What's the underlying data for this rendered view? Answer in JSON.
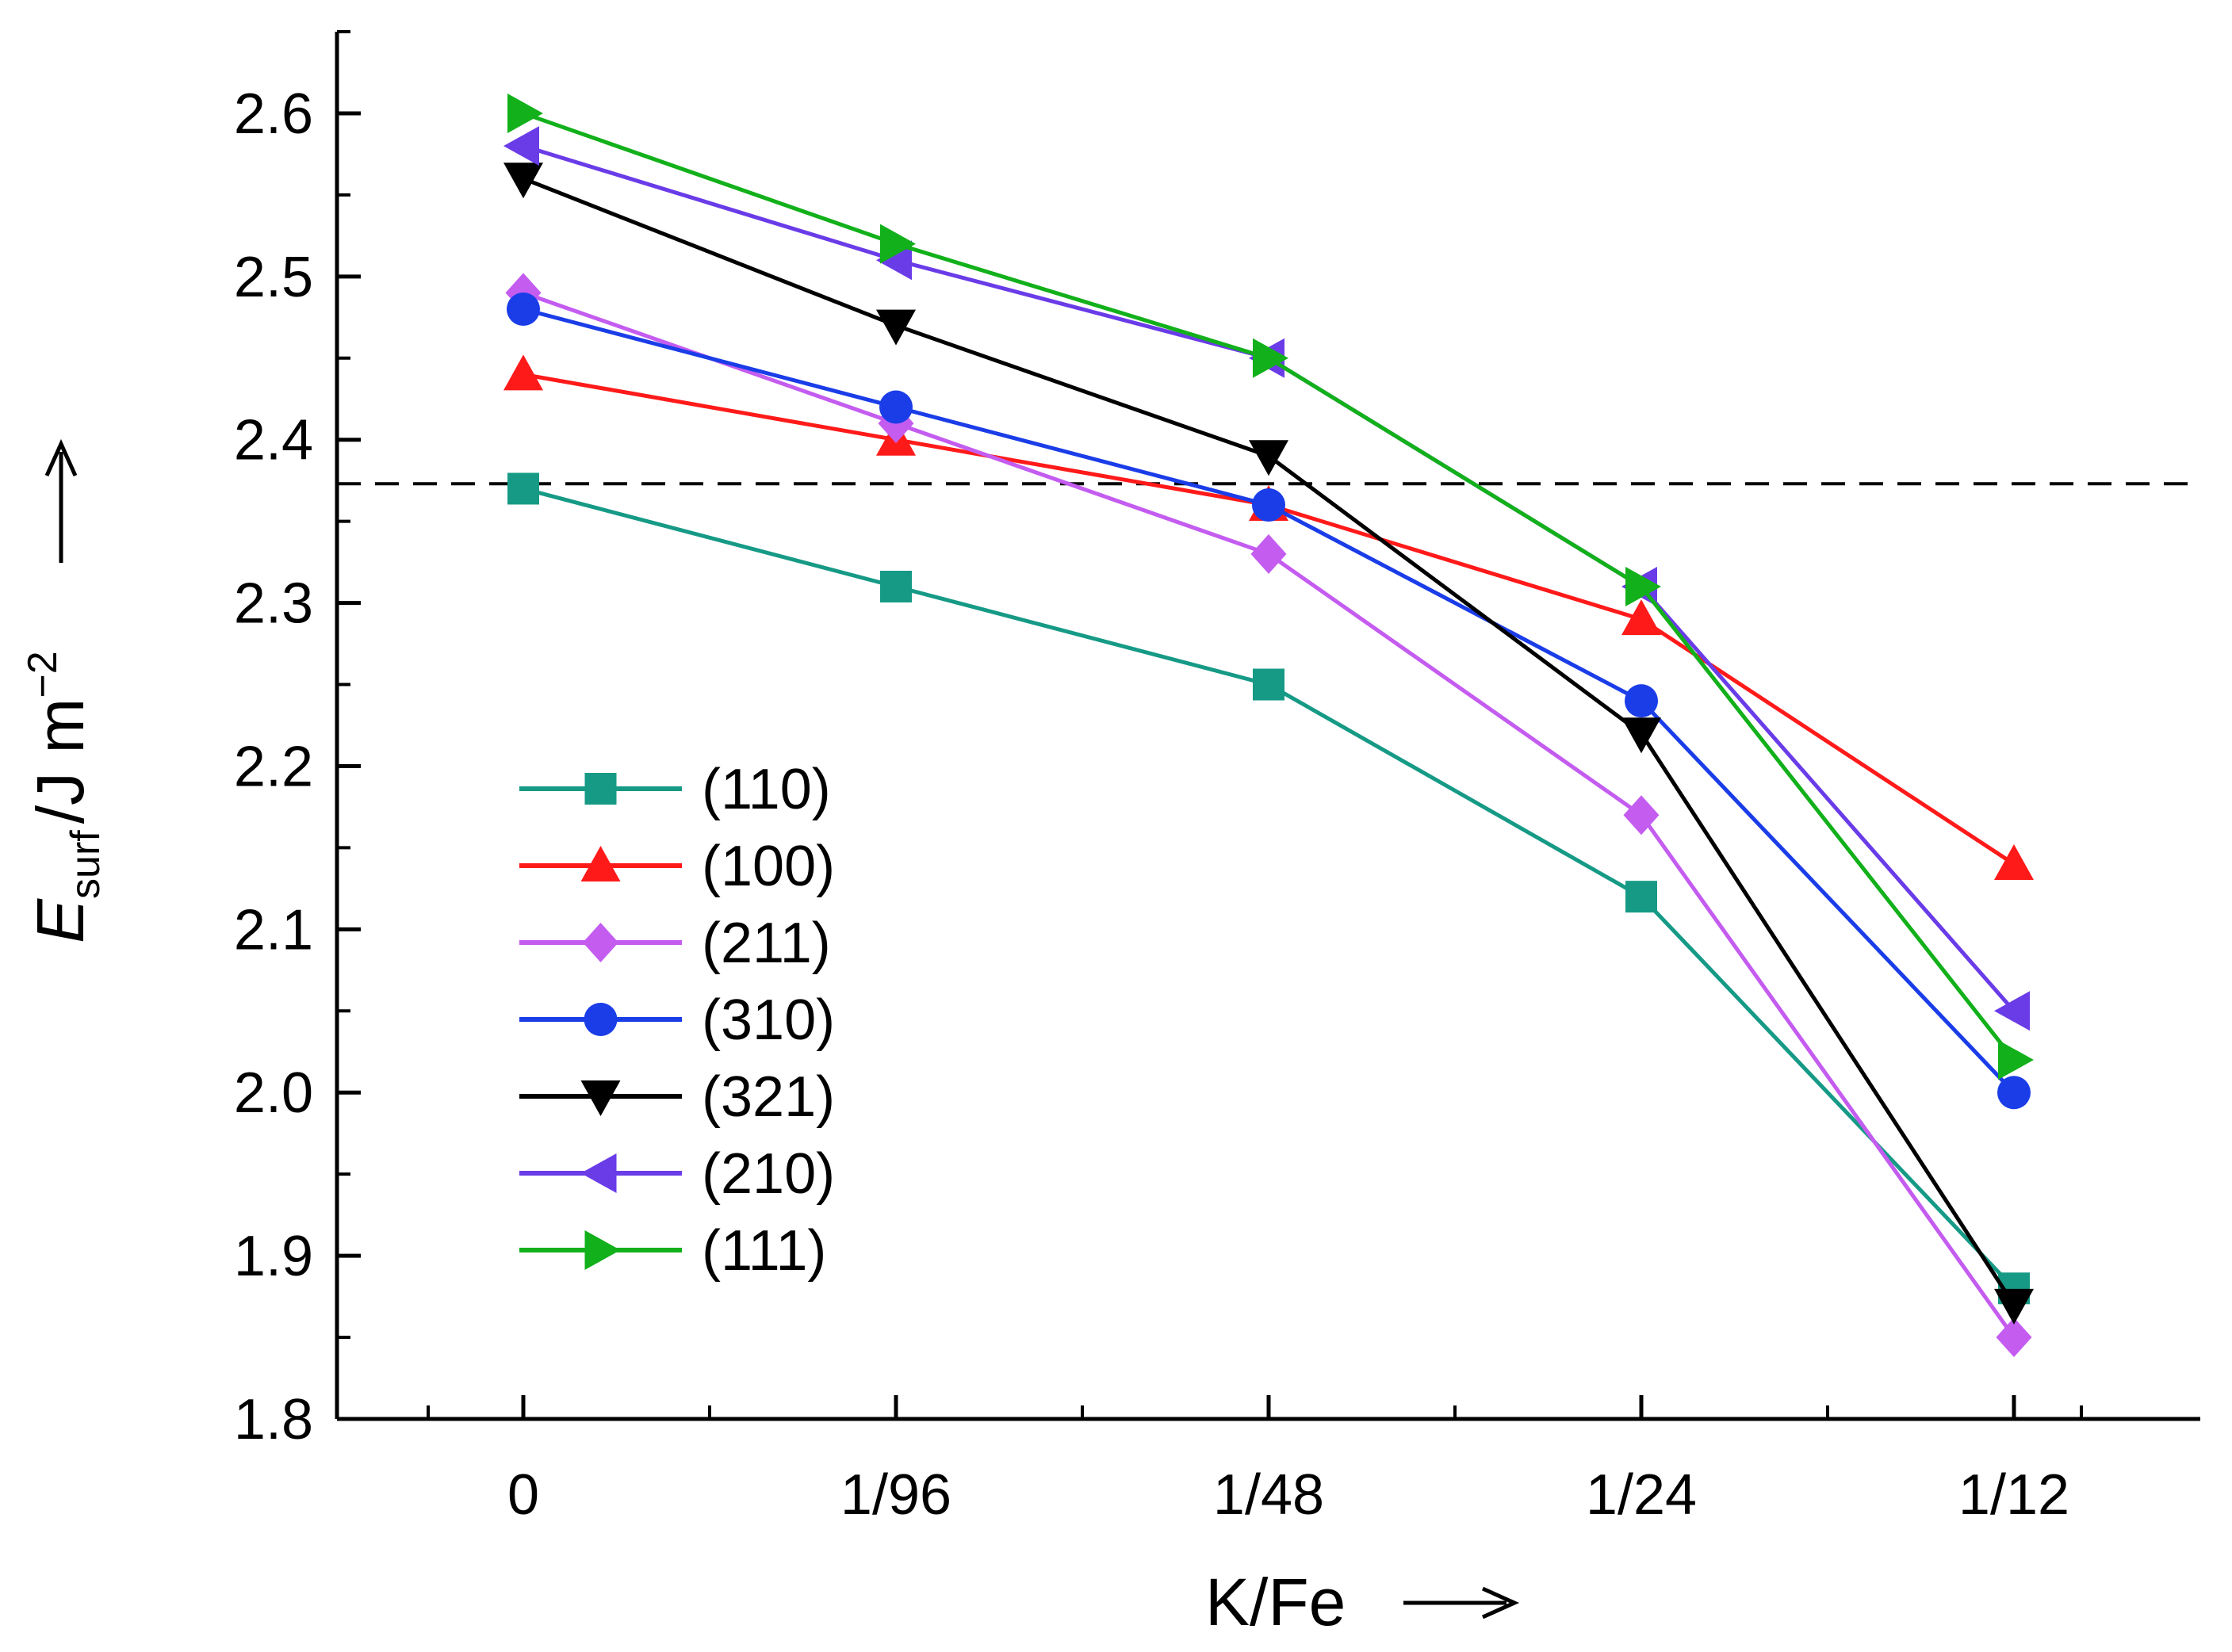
{
  "chart_data": {
    "type": "line",
    "categories": [
      "0",
      "1/96",
      "1/48",
      "1/24",
      "1/12"
    ],
    "ylim": [
      1.8,
      2.65
    ],
    "yticks": [
      "1.8",
      "1.9",
      "2.0",
      "2.1",
      "2.2",
      "2.3",
      "2.4",
      "2.5",
      "2.6"
    ],
    "xlabel": "K/Fe",
    "ylabel": {
      "main": "E",
      "sub": "surf",
      "unit": "/J m",
      "sup": "−2"
    },
    "reference_line": {
      "y": 2.373,
      "style": "dashed"
    },
    "legend_position": "lower-left",
    "grid": false,
    "series": [
      {
        "name": "(110)",
        "color": "#169a86",
        "marker": "square",
        "values": [
          2.37,
          2.31,
          2.25,
          2.12,
          1.88
        ]
      },
      {
        "name": "(100)",
        "color": "#ff1a1a",
        "marker": "triangle-up",
        "values": [
          2.44,
          2.4,
          2.36,
          2.29,
          2.14
        ]
      },
      {
        "name": "(211)",
        "color": "#c45cf0",
        "marker": "diamond",
        "values": [
          2.49,
          2.41,
          2.33,
          2.17,
          1.85
        ]
      },
      {
        "name": "(310)",
        "color": "#1a3de8",
        "marker": "circle",
        "values": [
          2.48,
          2.42,
          2.36,
          2.24,
          2.0
        ]
      },
      {
        "name": "(321)",
        "color": "#000000",
        "marker": "triangle-down",
        "values": [
          2.56,
          2.47,
          2.39,
          2.22,
          1.87
        ]
      },
      {
        "name": "(210)",
        "color": "#6a3ce8",
        "marker": "triangle-left",
        "values": [
          2.58,
          2.51,
          2.45,
          2.31,
          2.05
        ]
      },
      {
        "name": "(111)",
        "color": "#12b01a",
        "marker": "triangle-right",
        "values": [
          2.6,
          2.52,
          2.45,
          2.31,
          2.02
        ]
      }
    ]
  }
}
